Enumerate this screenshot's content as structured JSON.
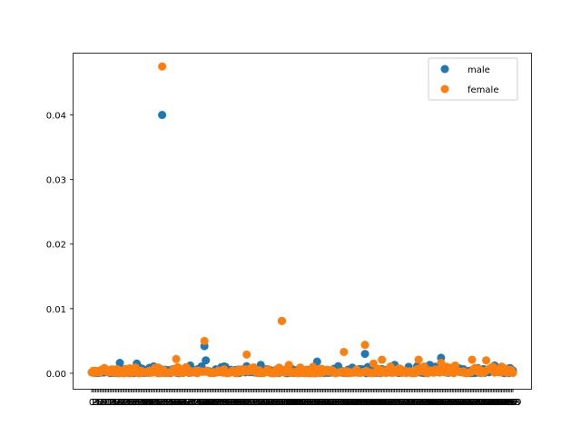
{
  "chart_data": {
    "type": "scatter",
    "title": "",
    "xlabel": "",
    "ylabel": "",
    "x_count": 300,
    "ylim": [
      -0.0024,
      0.0495
    ],
    "yticks": [
      {
        "value": 0.0,
        "label": "0.00"
      },
      {
        "value": 0.01,
        "label": "0.01"
      },
      {
        "value": 0.02,
        "label": "0.02"
      },
      {
        "value": 0.03,
        "label": "0.03"
      },
      {
        "value": 0.04,
        "label": "0.04"
      }
    ],
    "legend": {
      "placement": "top-right"
    },
    "series": [
      {
        "name": "male",
        "color": "#1f77b4",
        "highlights": [
          {
            "x": 50,
            "y": 0.04
          },
          {
            "x": 80,
            "y": 0.0042
          },
          {
            "x": 81,
            "y": 0.002
          },
          {
            "x": 135,
            "y": 0.0081
          },
          {
            "x": 160,
            "y": 0.0018
          },
          {
            "x": 194,
            "y": 0.003
          },
          {
            "x": 248,
            "y": 0.0024
          },
          {
            "x": 20,
            "y": 0.0016
          },
          {
            "x": 32,
            "y": 0.0015
          },
          {
            "x": 70,
            "y": 0.0012
          },
          {
            "x": 120,
            "y": 0.0013
          },
          {
            "x": 215,
            "y": 0.0013
          },
          {
            "x": 240,
            "y": 0.0013
          },
          {
            "x": 286,
            "y": 0.0012
          },
          {
            "x": 110,
            "y": 0.0011
          },
          {
            "x": 225,
            "y": 0.001
          }
        ]
      },
      {
        "name": "female",
        "color": "#ff7f0e",
        "highlights": [
          {
            "x": 50,
            "y": 0.0475
          },
          {
            "x": 80,
            "y": 0.005
          },
          {
            "x": 135,
            "y": 0.0081
          },
          {
            "x": 194,
            "y": 0.0044
          },
          {
            "x": 179,
            "y": 0.0033
          },
          {
            "x": 110,
            "y": 0.0029
          },
          {
            "x": 60,
            "y": 0.0022
          },
          {
            "x": 206,
            "y": 0.0021
          },
          {
            "x": 232,
            "y": 0.0021
          },
          {
            "x": 270,
            "y": 0.0021
          },
          {
            "x": 280,
            "y": 0.002
          },
          {
            "x": 248,
            "y": 0.0016
          },
          {
            "x": 200,
            "y": 0.0015
          },
          {
            "x": 140,
            "y": 0.0013
          },
          {
            "x": 258,
            "y": 0.0012
          }
        ]
      }
    ]
  }
}
